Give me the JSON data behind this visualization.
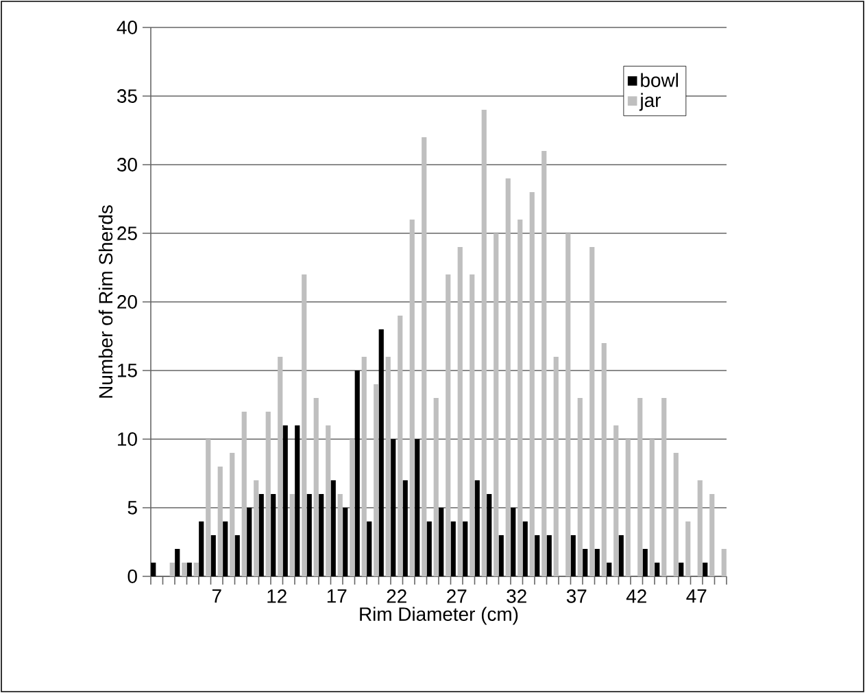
{
  "chart_data": {
    "type": "bar",
    "xlabel": "Rim Diameter (cm)",
    "ylabel": "Number of Rim Sherds",
    "categories": [
      null,
      null,
      null,
      null,
      null,
      "7",
      null,
      null,
      null,
      null,
      "12",
      null,
      null,
      null,
      null,
      "17",
      null,
      null,
      null,
      null,
      "22",
      null,
      null,
      null,
      null,
      "27",
      null,
      null,
      null,
      null,
      "32",
      null,
      null,
      null,
      null,
      "37",
      null,
      null,
      null,
      null,
      "42",
      null,
      null,
      null,
      null,
      "47",
      null,
      null
    ],
    "series": [
      {
        "name": "bowl",
        "color": "#000000",
        "values": [
          1,
          0,
          2,
          1,
          4,
          3,
          4,
          3,
          5,
          6,
          6,
          11,
          11,
          6,
          6,
          7,
          5,
          15,
          4,
          18,
          10,
          7,
          10,
          4,
          5,
          4,
          4,
          7,
          6,
          3,
          5,
          4,
          3,
          3,
          0,
          3,
          2,
          2,
          1,
          3,
          0,
          2,
          1,
          0,
          1,
          0,
          1,
          0
        ]
      },
      {
        "name": "jar",
        "color": "#bfbfbf",
        "values": [
          0,
          1,
          1,
          1,
          10,
          8,
          9,
          12,
          7,
          12,
          16,
          6,
          22,
          13,
          11,
          6,
          10,
          16,
          14,
          16,
          19,
          26,
          32,
          13,
          22,
          24,
          22,
          34,
          25,
          29,
          26,
          28,
          31,
          16,
          25,
          13,
          24,
          17,
          11,
          10,
          13,
          10,
          13,
          9,
          4,
          7,
          6,
          2
        ]
      }
    ],
    "ylim": [
      0,
      40
    ],
    "yticks": [
      0,
      5,
      10,
      15,
      20,
      25,
      30,
      35,
      40
    ],
    "grid": "y",
    "legend": "top right"
  }
}
